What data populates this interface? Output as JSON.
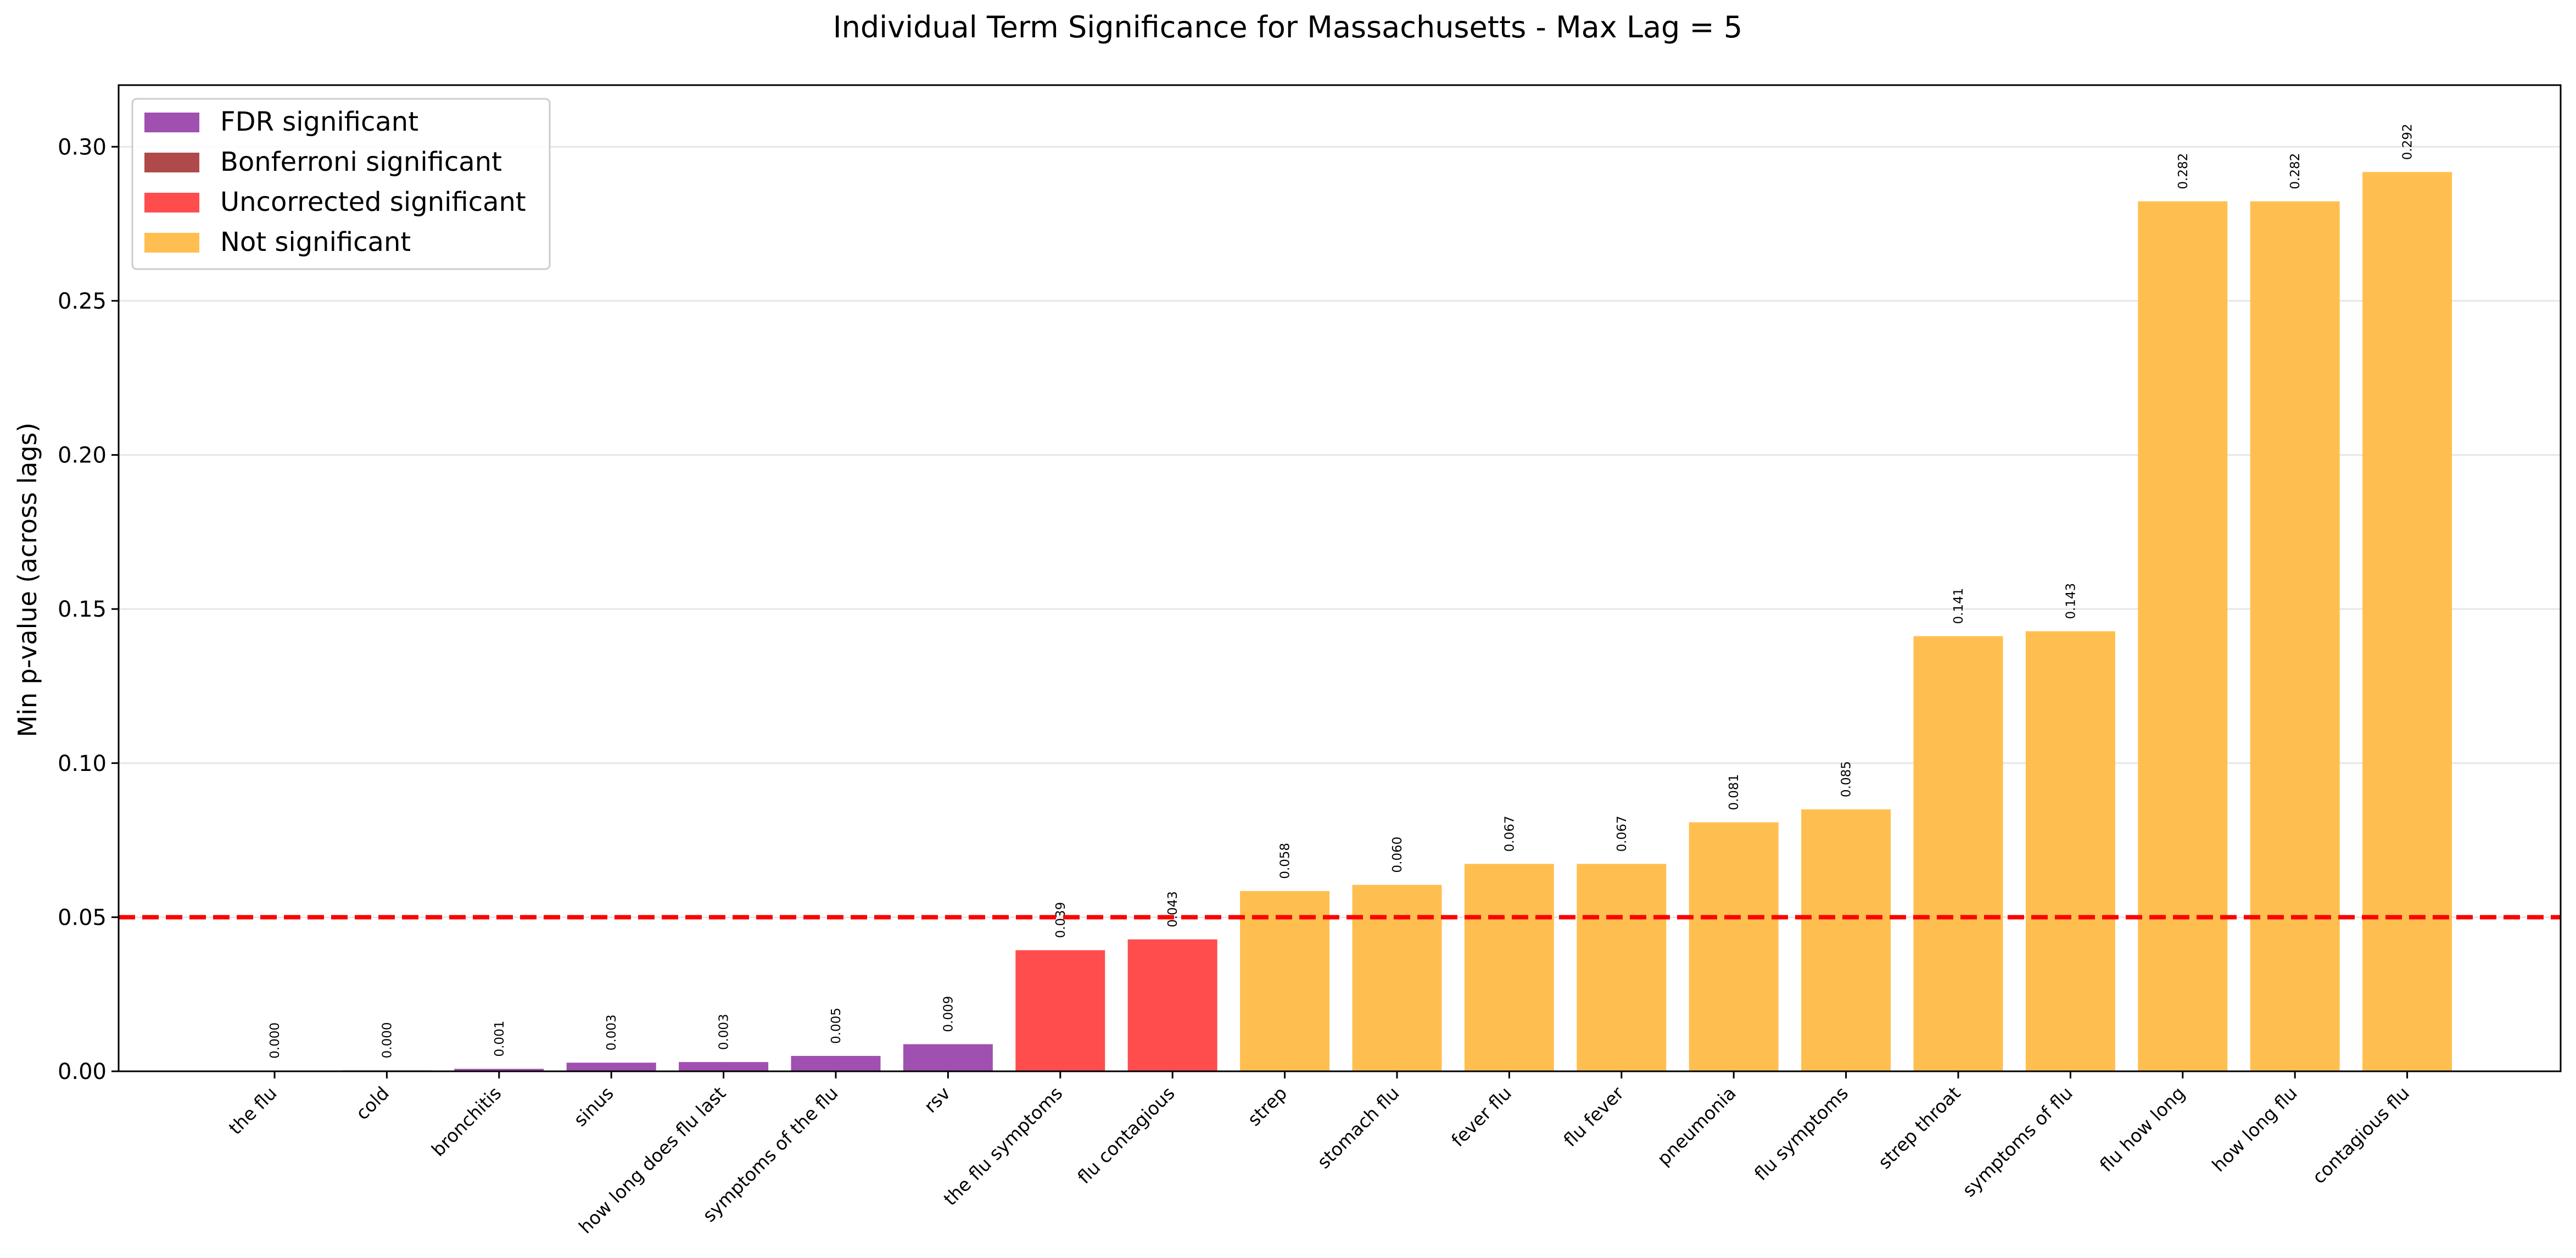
{
  "chart_data": {
    "type": "bar",
    "title": "Individual Term Significance for Massachusetts - Max Lag = 5",
    "xlabel": "",
    "ylabel": "Min p-value (across lags)",
    "ylim": [
      0,
      0.32
    ],
    "yticks": [
      0.0,
      0.05,
      0.1,
      0.15,
      0.2,
      0.25,
      0.3
    ],
    "ytick_labels": [
      "0.00",
      "0.05",
      "0.10",
      "0.15",
      "0.20",
      "0.25",
      "0.30"
    ],
    "grid": "y",
    "threshold": {
      "value": 0.05,
      "color": "#ff0000",
      "style": "dashed"
    },
    "legend_position": "top-left",
    "legend": [
      {
        "label": "FDR significant",
        "color": "#a050b0"
      },
      {
        "label": "Bonferroni significant",
        "color": "#b04a4a"
      },
      {
        "label": "Uncorrected significant",
        "color": "#ff4d4d"
      },
      {
        "label": "Not significant",
        "color": "#ffbf50"
      }
    ],
    "categories": [
      "the flu",
      "cold",
      "bronchitis",
      "sinus",
      "how long does flu last",
      "symptoms of the flu",
      "rsv",
      "the flu symptoms",
      "flu contagious",
      "strep",
      "stomach flu",
      "fever flu",
      "flu fever",
      "pneumonia",
      "flu symptoms",
      "strep throat",
      "symptoms of flu",
      "flu how long",
      "how long flu",
      "contagious flu"
    ],
    "values": [
      0.0002,
      0.0003,
      0.0008,
      0.0028,
      0.003,
      0.005,
      0.0088,
      0.0393,
      0.0428,
      0.0585,
      0.0605,
      0.0673,
      0.0673,
      0.0808,
      0.085,
      0.1412,
      0.1428,
      0.2823,
      0.2823,
      0.2918
    ],
    "value_labels": [
      "0.000",
      "0.000",
      "0.001",
      "0.003",
      "0.003",
      "0.005",
      "0.009",
      "0.039",
      "0.043",
      "0.058",
      "0.060",
      "0.067",
      "0.067",
      "0.081",
      "0.085",
      "0.141",
      "0.143",
      "0.282",
      "0.282",
      "0.292"
    ],
    "significance": [
      "FDR significant",
      "FDR significant",
      "FDR significant",
      "FDR significant",
      "FDR significant",
      "FDR significant",
      "FDR significant",
      "Uncorrected significant",
      "Uncorrected significant",
      "Not significant",
      "Not significant",
      "Not significant",
      "Not significant",
      "Not significant",
      "Not significant",
      "Not significant",
      "Not significant",
      "Not significant",
      "Not significant",
      "Not significant"
    ]
  }
}
